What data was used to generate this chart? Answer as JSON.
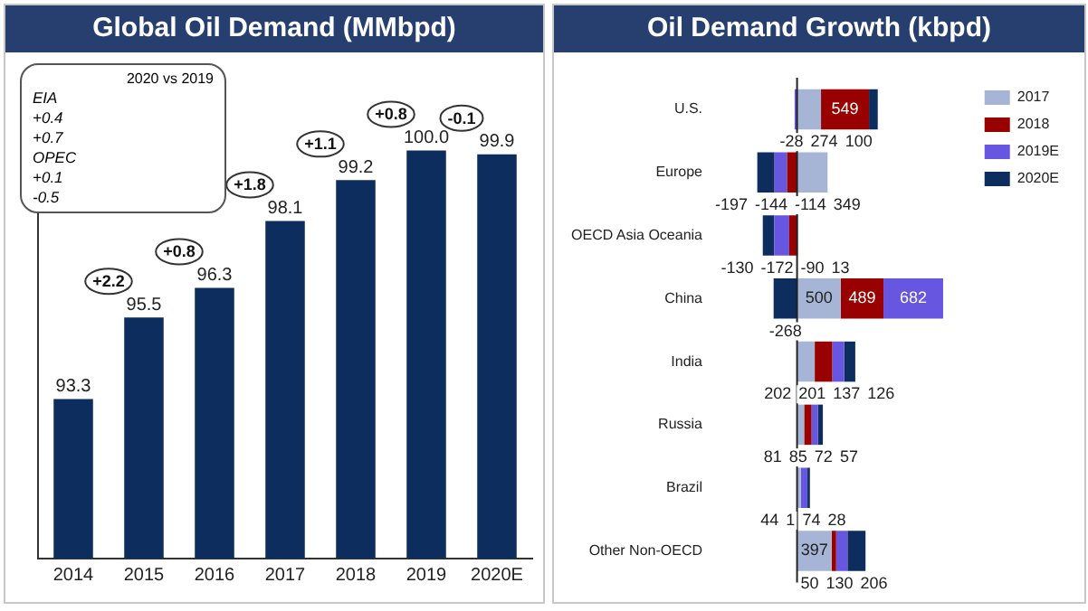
{
  "chart_data": [
    {
      "type": "bar",
      "title": "Global Oil Demand (MMbpd)",
      "categories": [
        "2014",
        "2015",
        "2016",
        "2017",
        "2018",
        "2019",
        "2020E"
      ],
      "values": [
        93.3,
        95.5,
        96.3,
        98.1,
        99.2,
        100.0,
        99.9
      ],
      "value_labels": [
        "93.3",
        "95.5",
        "96.3",
        "98.1",
        "99.2",
        "100.0",
        "99.9"
      ],
      "color": "#0d2d5e",
      "ylim": [
        89,
        100.5
      ],
      "tick_labels": "x",
      "grid": false,
      "legend": false,
      "annotations": [
        "2020 vs 2019",
        "EIA",
        "+0.4",
        "+0.7",
        "OPEC",
        "+0.1",
        "-0.5",
        {
          "text": "+2.2",
          "x": "2015",
          "y": 95.5
        },
        {
          "text": "+0.8",
          "x": "2016",
          "y": 96.3
        },
        {
          "text": "+1.8",
          "x": "2017",
          "y": 98.1
        },
        {
          "text": "+1.1",
          "x": "2018",
          "y": 99.2
        },
        {
          "text": "+0.8",
          "x": "2019",
          "y": 100.0
        },
        {
          "text": "-0.1",
          "x": "2020E",
          "y": 99.9
        }
      ]
    },
    {
      "type": "bar",
      "title": "Oil Demand Growth (kbpd)",
      "orientation": "horizontal",
      "stacked": true,
      "categories": [
        "U.S.",
        "Europe",
        "OECD Asia Oceania",
        "China",
        "India",
        "Russia",
        "Brazil",
        "Other Non-OECD"
      ],
      "series": [
        {
          "name": "2017",
          "color": "#a6b4d6",
          "values": [
            274,
            349,
            13,
            500,
            202,
            81,
            44,
            397
          ]
        },
        {
          "name": "2018",
          "color": "#990000",
          "values": [
            549,
            -114,
            -90,
            489,
            201,
            85,
            1,
            50
          ]
        },
        {
          "name": "2019E",
          "color": "#6656e0",
          "values": [
            -28,
            -144,
            -172,
            682,
            137,
            72,
            74,
            130
          ]
        },
        {
          "name": "2020E",
          "color": "#0d2d5e",
          "values": [
            100,
            -197,
            -130,
            -268,
            126,
            57,
            28,
            206
          ]
        }
      ],
      "data_labels": true,
      "tick_labels": "y",
      "grid": false,
      "legend": "top right"
    }
  ]
}
